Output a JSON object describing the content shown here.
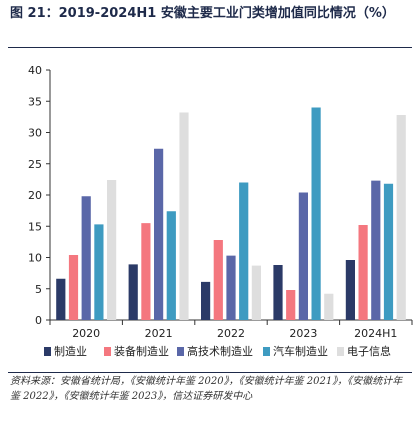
{
  "header": {
    "title": "图 21：2019-2024H1 安徽主要工业门类增加值同比情况（%）"
  },
  "footer": {
    "source": "资料来源：安徽省统计局，《安徽统计年鉴 2020》，《安徽统计年鉴 2021》，《安徽统计年鉴 2022》，《安徽统计年鉴 2023》，信达证券研发中心"
  },
  "chart_data": {
    "type": "bar",
    "title": "图 21：2019-2024H1 安徽主要工业门类增加值同比情况（%）",
    "categories": [
      "2020",
      "2021",
      "2022",
      "2023",
      "2024H1"
    ],
    "ylim": [
      0,
      40
    ],
    "yticks": [
      0,
      5,
      10,
      15,
      20,
      25,
      30,
      35,
      40
    ],
    "legend_position": "bottom",
    "grid": false,
    "series": [
      {
        "name": "制造业",
        "color": "#2b3a67",
        "values": [
          6.6,
          8.9,
          6.1,
          8.8,
          9.6
        ]
      },
      {
        "name": "装备制造业",
        "color": "#f4777f",
        "values": [
          10.4,
          15.5,
          12.8,
          4.8,
          15.2
        ]
      },
      {
        "name": "高技术制造业",
        "color": "#5a67a8",
        "values": [
          19.8,
          27.4,
          10.3,
          20.4,
          22.3
        ]
      },
      {
        "name": "汽车制造业",
        "color": "#3e9bc1",
        "values": [
          15.3,
          17.4,
          22.0,
          34.0,
          21.8
        ]
      },
      {
        "name": "电子信息",
        "color": "#dedede",
        "values": [
          22.4,
          33.2,
          8.7,
          4.2,
          32.8
        ]
      }
    ]
  }
}
